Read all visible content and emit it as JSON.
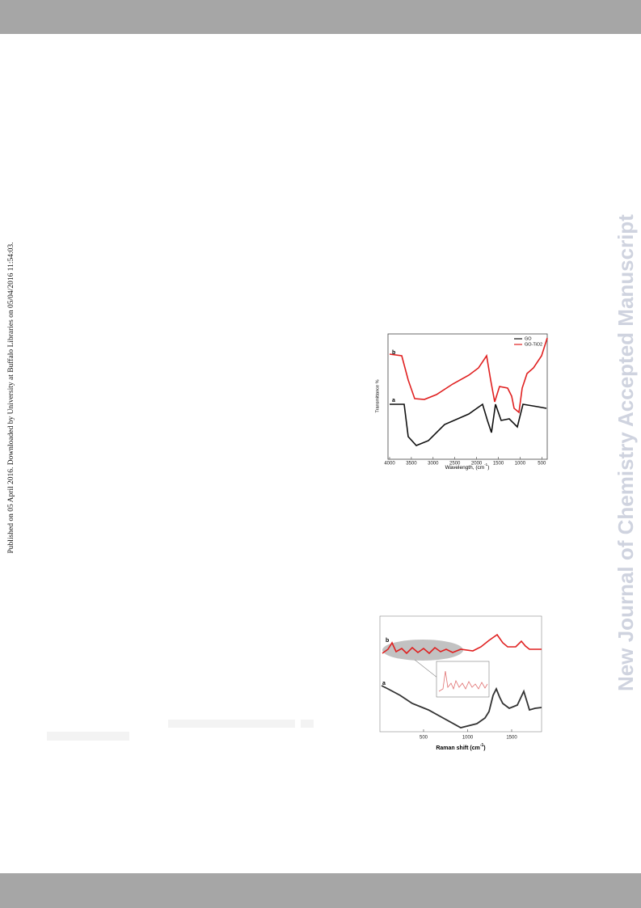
{
  "side_note": "Published on 05 April 2016. Downloaded by University at Buffalo Libraries on 05/04/2016 11:54:03.",
  "watermark": "New Journal of Chemistry Accepted Manuscript",
  "figure_1": {
    "ylabel": "Transmittance %",
    "xlabel": {
      "text": "Wavelength, (cm",
      "sup": "-1",
      "end": ")"
    },
    "xticks": [
      "4000",
      "3500",
      "3000",
      "2500",
      "2000",
      "1500",
      "1000",
      "500"
    ],
    "legend": [
      "GO",
      "GO-TiO2"
    ],
    "curve_labels": [
      "b",
      "a"
    ]
  },
  "figure_2": {
    "xlabel": {
      "text": "Raman shift (cm",
      "sup": "-1",
      "end": ")"
    },
    "xticks": [
      "500",
      "1000",
      "1500"
    ],
    "curve_labels": [
      "b",
      "a"
    ]
  }
}
